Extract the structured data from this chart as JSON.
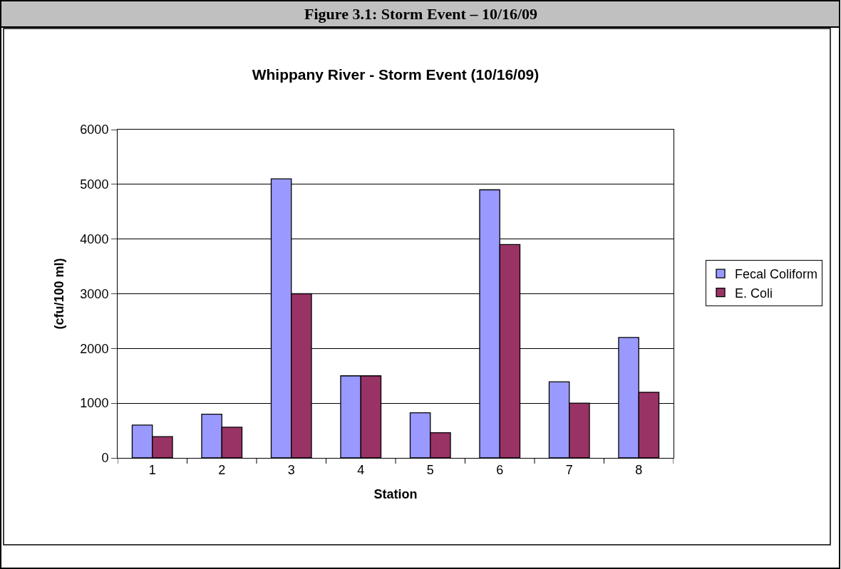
{
  "chart_data": {
    "type": "bar",
    "title": "Whippany River - Storm Event (10/16/09)",
    "xlabel": "Station",
    "ylabel": "(cfu/100 ml)",
    "annotations": [
      "Figure 3.1: Storm Event – 10/16/09"
    ],
    "categories": [
      "1",
      "2",
      "3",
      "4",
      "5",
      "6",
      "7",
      "8"
    ],
    "series": [
      {
        "name": "Fecal Coliform",
        "color": "#9999ff",
        "values": [
          600,
          800,
          5100,
          1500,
          825,
          4900,
          1390,
          2200
        ]
      },
      {
        "name": "E. Coli",
        "color": "#993366",
        "values": [
          390,
          560,
          3000,
          1500,
          460,
          3900,
          1000,
          1200
        ]
      }
    ],
    "ylim": [
      0,
      6000
    ],
    "yticks": [
      0,
      1000,
      2000,
      3000,
      4000,
      5000,
      6000
    ],
    "grid": "y",
    "legend": "right"
  }
}
